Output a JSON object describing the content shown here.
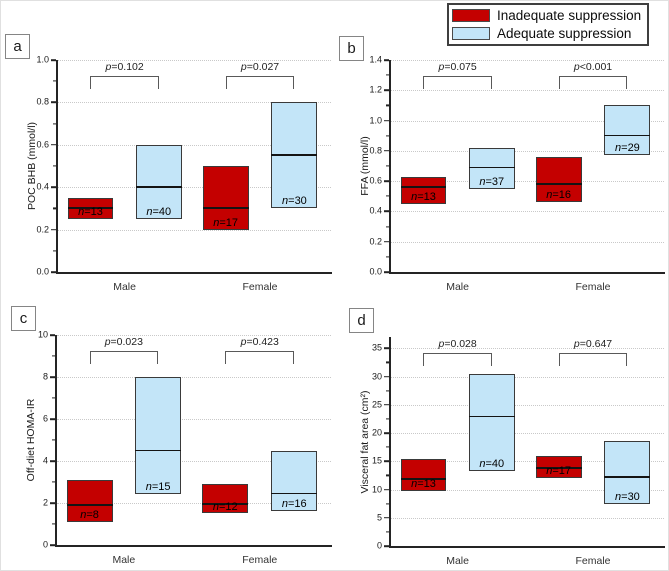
{
  "legend": {
    "items": [
      {
        "label": "Inadequate suppression",
        "color": "#c40000"
      },
      {
        "label": "Adequate suppression",
        "color": "#c3e5f8"
      }
    ]
  },
  "chart_data": [
    {
      "type": "box",
      "panel_label": "a",
      "ylabel": "POC BHB (mmol/l)",
      "ylim": [
        0,
        1.0
      ],
      "ytick_values": [
        0,
        0.2,
        0.4,
        0.6,
        0.8,
        1.0
      ],
      "ytick_labels": [
        "0.0",
        "0.2",
        "0.4",
        "0.6",
        "0.8",
        "1.0"
      ],
      "yminor_ticks": [
        0.1,
        0.3,
        0.5,
        0.7,
        0.9
      ],
      "grid": "dotted-horizontal",
      "categories": [
        "Male",
        "Female"
      ],
      "series": [
        "Inadequate suppression",
        "Adequate suppression"
      ],
      "boxes": [
        {
          "category": "Male",
          "series": "Inadequate suppression",
          "q1": 0.25,
          "median": 0.3,
          "q3": 0.35,
          "n_label": "n=13"
        },
        {
          "category": "Male",
          "series": "Adequate suppression",
          "q1": 0.25,
          "median": 0.4,
          "q3": 0.6,
          "n_label": "n=40"
        },
        {
          "category": "Female",
          "series": "Inadequate suppression",
          "q1": 0.2,
          "median": 0.3,
          "q3": 0.5,
          "n_label": "n=17"
        },
        {
          "category": "Female",
          "series": "Adequate suppression",
          "q1": 0.3,
          "median": 0.55,
          "q3": 0.8,
          "n_label": "n=30"
        }
      ],
      "comparisons": [
        {
          "category": "Male",
          "p_label": "p=0.102"
        },
        {
          "category": "Female",
          "p_label": "p=0.027"
        }
      ]
    },
    {
      "type": "box",
      "panel_label": "b",
      "ylabel": "FFA (mmol/l)",
      "ylim": [
        0,
        1.4
      ],
      "ytick_values": [
        0,
        0.2,
        0.4,
        0.6,
        0.8,
        1.0,
        1.2,
        1.4
      ],
      "ytick_labels": [
        "0.0",
        "0.2",
        "0.4",
        "0.6",
        "0.8",
        "1.0",
        "1.2",
        "1.4"
      ],
      "yminor_ticks": [
        0.1,
        0.3,
        0.5,
        0.7,
        0.9,
        1.1,
        1.3
      ],
      "grid": "dotted-horizontal",
      "categories": [
        "Male",
        "Female"
      ],
      "series": [
        "Inadequate suppression",
        "Adequate suppression"
      ],
      "boxes": [
        {
          "category": "Male",
          "series": "Inadequate suppression",
          "q1": 0.45,
          "median": 0.56,
          "q3": 0.63,
          "n_label": "n=13"
        },
        {
          "category": "Male",
          "series": "Adequate suppression",
          "q1": 0.55,
          "median": 0.69,
          "q3": 0.82,
          "n_label": "n=37"
        },
        {
          "category": "Female",
          "series": "Inadequate suppression",
          "q1": 0.46,
          "median": 0.58,
          "q3": 0.76,
          "n_label": "n=16"
        },
        {
          "category": "Female",
          "series": "Adequate suppression",
          "q1": 0.77,
          "median": 0.9,
          "q3": 1.1,
          "n_label": "n=29"
        }
      ],
      "comparisons": [
        {
          "category": "Male",
          "p_label": "p=0.075"
        },
        {
          "category": "Female",
          "p_label": "p<0.001"
        }
      ]
    },
    {
      "type": "box",
      "panel_label": "c",
      "ylabel": "Off-diet HOMA-IR",
      "ylim": [
        0,
        10
      ],
      "ytick_values": [
        0,
        2,
        4,
        6,
        8,
        10
      ],
      "ytick_labels": [
        "0",
        "2",
        "4",
        "6",
        "8",
        "10"
      ],
      "yminor_ticks": [
        1,
        3,
        5,
        7,
        9
      ],
      "grid": "dotted-horizontal",
      "categories": [
        "Male",
        "Female"
      ],
      "series": [
        "Inadequate suppression",
        "Adequate suppression"
      ],
      "boxes": [
        {
          "category": "Male",
          "series": "Inadequate suppression",
          "q1": 1.1,
          "median": 1.9,
          "q3": 3.1,
          "n_label": "n=8"
        },
        {
          "category": "Male",
          "series": "Adequate suppression",
          "q1": 2.45,
          "median": 4.5,
          "q3": 8.0,
          "n_label": "n=15"
        },
        {
          "category": "Female",
          "series": "Inadequate suppression",
          "q1": 1.5,
          "median": 1.95,
          "q3": 2.9,
          "n_label": "n=12"
        },
        {
          "category": "Female",
          "series": "Adequate suppression",
          "q1": 1.6,
          "median": 2.45,
          "q3": 4.5,
          "n_label": "n=16"
        }
      ],
      "comparisons": [
        {
          "category": "Male",
          "p_label": "p=0.023"
        },
        {
          "category": "Female",
          "p_label": "p=0.423"
        }
      ]
    },
    {
      "type": "box",
      "panel_label": "d",
      "ylabel": "Visceral fat area (cm²)",
      "ylim": [
        0,
        37
      ],
      "ytick_values": [
        0,
        5,
        10,
        15,
        20,
        25,
        30,
        35
      ],
      "ytick_labels": [
        "0",
        "5",
        "10",
        "15",
        "20",
        "25",
        "30",
        "35"
      ],
      "yminor_ticks": [
        2.5,
        7.5,
        12.5,
        17.5,
        22.5,
        27.5,
        32.5
      ],
      "grid": "dotted-horizontal",
      "categories": [
        "Male",
        "Female"
      ],
      "series": [
        "Inadequate suppression",
        "Adequate suppression"
      ],
      "boxes": [
        {
          "category": "Male",
          "series": "Inadequate suppression",
          "q1": 9.8,
          "median": 11.8,
          "q3": 15.4,
          "n_label": "n=13"
        },
        {
          "category": "Male",
          "series": "Adequate suppression",
          "q1": 13.2,
          "median": 22.9,
          "q3": 30.4,
          "n_label": "n=40"
        },
        {
          "category": "Female",
          "series": "Inadequate suppression",
          "q1": 12.0,
          "median": 13.8,
          "q3": 15.9,
          "n_label": "n=17"
        },
        {
          "category": "Female",
          "series": "Adequate suppression",
          "q1": 7.5,
          "median": 12.2,
          "q3": 18.6,
          "n_label": "n=30"
        }
      ],
      "comparisons": [
        {
          "category": "Male",
          "p_label": "p=0.028"
        },
        {
          "category": "Female",
          "p_label": "p=0.647"
        }
      ]
    }
  ]
}
